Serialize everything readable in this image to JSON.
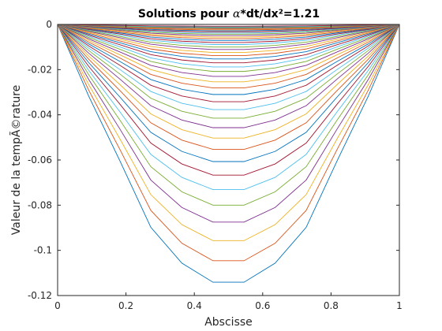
{
  "chart_data": {
    "type": "line",
    "title_prefix": "Solutions pour ",
    "title_alpha": "α",
    "title_suffix": "*dt/dx²=1.21",
    "xlabel": "Abscisse",
    "ylabel": "Valeur de la tempÃ©rature",
    "xlim": [
      0,
      1
    ],
    "ylim": [
      -0.12,
      0
    ],
    "xticks": [
      0,
      0.2,
      0.4,
      0.6,
      0.8,
      1
    ],
    "xtick_labels": [
      "0",
      "0.2",
      "0.4",
      "0.6",
      "0.8",
      "1"
    ],
    "yticks": [
      0,
      -0.02,
      -0.04,
      -0.06,
      -0.08,
      -0.1,
      -0.12
    ],
    "ytick_labels": [
      "0",
      "-0.02",
      "-0.04",
      "-0.06",
      "-0.08",
      "-0.1",
      "-0.12"
    ],
    "grid": false,
    "x": [
      0,
      0.0909,
      0.1818,
      0.2727,
      0.3636,
      0.4545,
      0.5455,
      0.6364,
      0.7273,
      0.8182,
      0.9091,
      1
    ],
    "profile": [
      0,
      0.278,
      0.528,
      0.787,
      0.926,
      1,
      1,
      0.926,
      0.787,
      0.528,
      0.278,
      0
    ],
    "peak_depths": [
      0.1141,
      0.1046,
      0.0957,
      0.0875,
      0.08,
      0.0731,
      0.0667,
      0.0607,
      0.0553,
      0.0503,
      0.0457,
      0.0415,
      0.0377,
      0.0342,
      0.031,
      0.0281,
      0.0254,
      0.023,
      0.0208,
      0.0188,
      0.017,
      0.0153,
      0.0138,
      0.0124,
      0.0111,
      0.01,
      0.0089,
      0.008,
      0.0071,
      0.0063,
      0.0056,
      0.0049,
      0.0043,
      0.0038,
      0.0033,
      0.0028,
      0.0024,
      0.002,
      0.0017,
      0.0014,
      0.0011,
      0.0008
    ],
    "colors": [
      "#0072BD",
      "#D95319",
      "#EDB120",
      "#7E2F8E",
      "#77AC30",
      "#4DBEEE",
      "#A2142F"
    ]
  }
}
